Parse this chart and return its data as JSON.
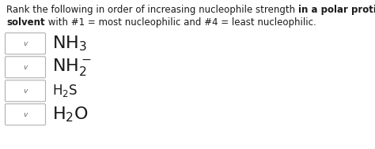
{
  "line1_part1": "Rank the following in order of increasing nucleophile strength ",
  "line1_part2": "in a polar protic",
  "line2_part1": "solvent",
  "line2_part2": " with #1 = most nucleophilic and #4 = least nucleophilic.",
  "compounds": [
    "NH$_3$",
    "NH$_2^-$",
    "H$_2$S",
    "H$_2$O"
  ],
  "background_color": "#ffffff",
  "text_color": "#1a1a1a",
  "box_edge_color": "#b0b0b0",
  "chevron_color": "#666666",
  "font_size_title": 8.5,
  "font_size_compound_large": 13.5,
  "font_size_compound_small": 10.5
}
